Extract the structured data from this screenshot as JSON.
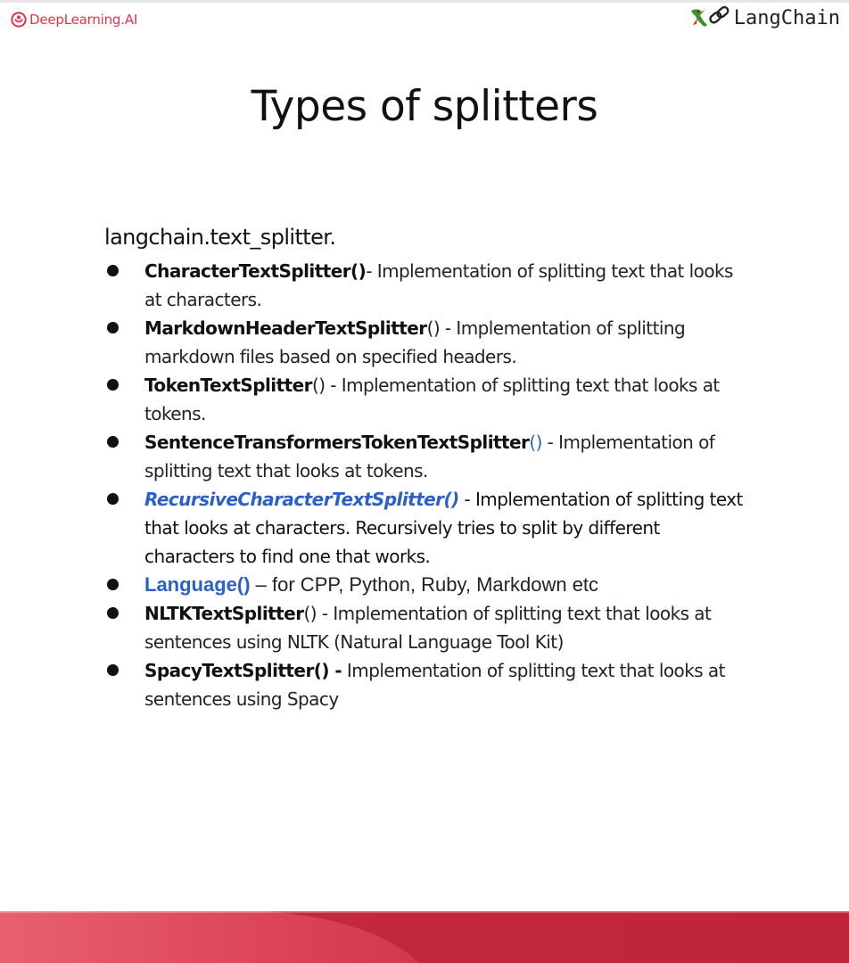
{
  "header": {
    "left_logo_text": "DeepLearning.AI",
    "right_logo_text": "LangChain"
  },
  "slide": {
    "title": "Types of splitters",
    "module": "langchain.text_splitter.",
    "items": [
      {
        "name": "CharacterTextSplitter()",
        "description": "- Implementation of splitting text that looks at characters."
      },
      {
        "name": "MarkdownHeaderTextSplitter",
        "paren": "()",
        "description": " - Implementation of splitting markdown files based on specified headers."
      },
      {
        "name": "TokenTextSplitter",
        "paren": "()",
        "description": " - Implementation of splitting text that looks at tokens."
      },
      {
        "name": "SentenceTransformersTokenTextSplitter",
        "paren": "()",
        "description": " - Implementation of splitting text that looks at tokens."
      },
      {
        "name": "RecursiveCharacterTextSplitter()",
        "description": " - Implementation of splitting text that looks at characters. Recursively tries to split by different characters to find one that works."
      },
      {
        "name": "Language()",
        "description": " – for CPP, Python, Ruby, Markdown etc"
      },
      {
        "name": "NLTKTextSplitter",
        "paren": "()",
        "description": " - Implementation of splitting text that looks at sentences using NLTK (Natural Language Tool Kit)"
      },
      {
        "name": "SpacyTextSplitter() -",
        "description": " Implementation of splitting text that looks at sentences using Spacy"
      }
    ]
  },
  "colors": {
    "brand_red": "#e0334b",
    "link_blue": "#2a60c8",
    "footer_red": "#c0253a"
  }
}
